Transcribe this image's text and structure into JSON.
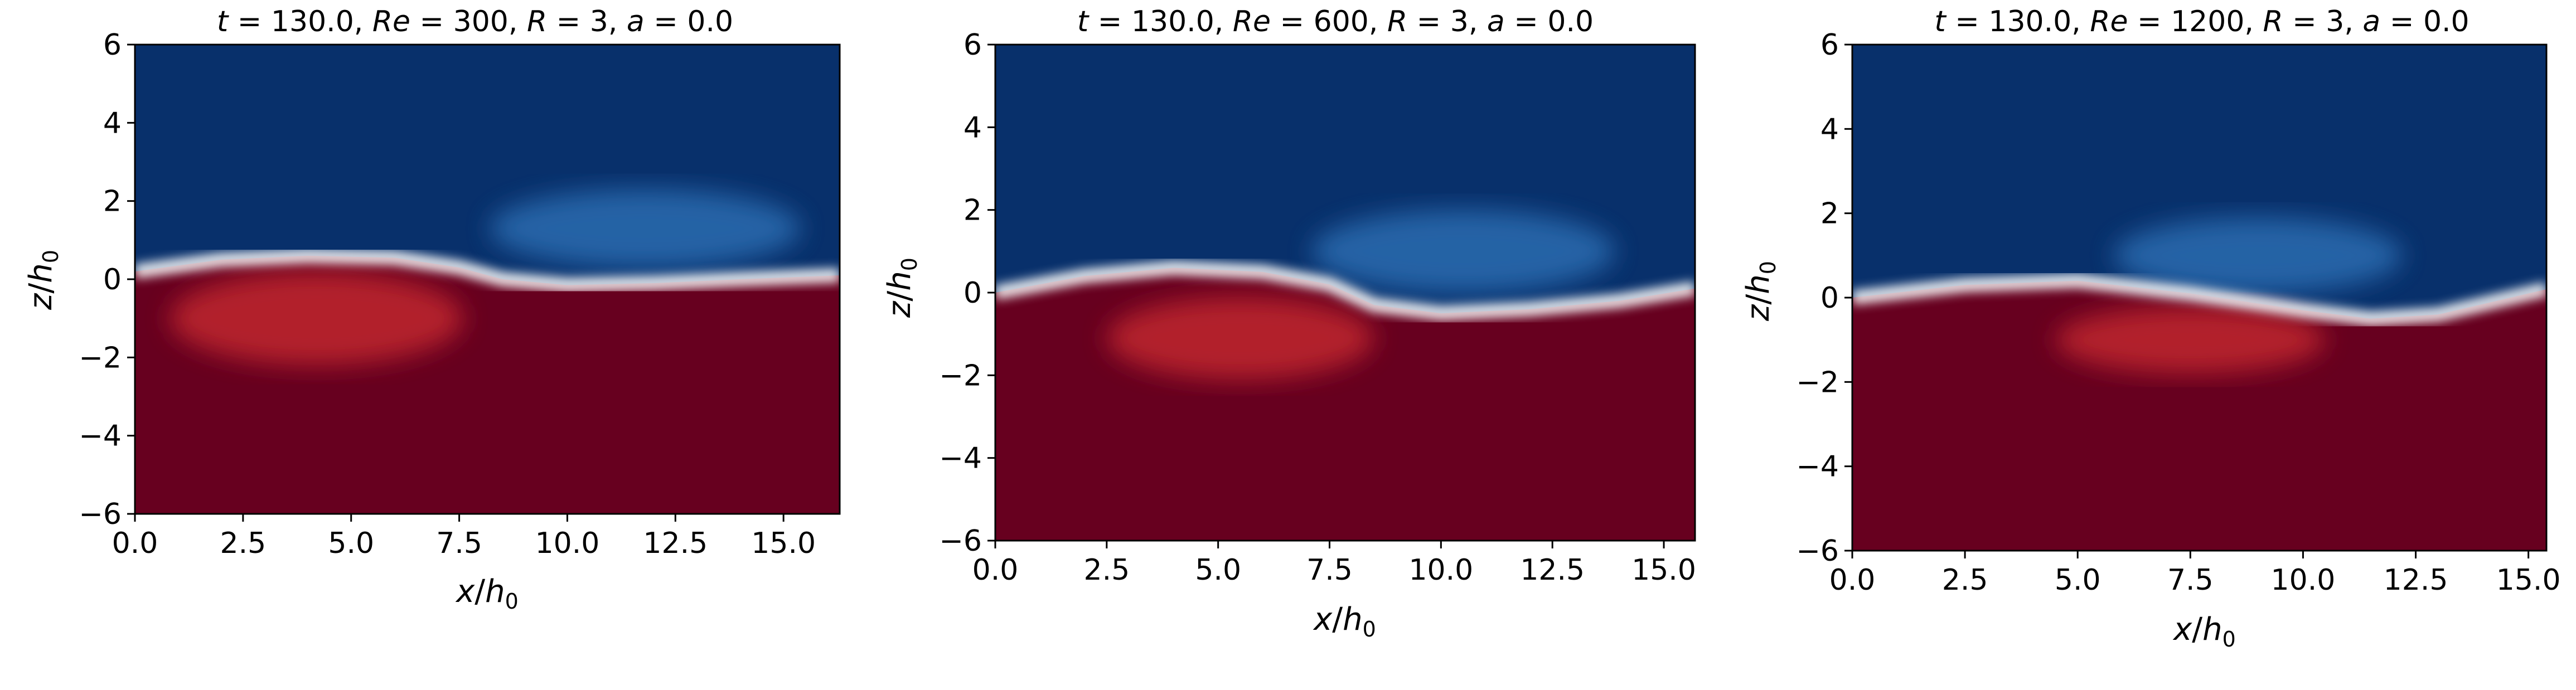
{
  "chart_data": [
    {
      "type": "heatmap",
      "title_parts": {
        "t_sym": "t",
        "t_val": "130.0",
        "Re_sym": "Re",
        "Re_val": "300",
        "R_sym": "R",
        "R_val": "3",
        "a_sym": "a",
        "a_val": "0.0"
      },
      "xlabel": {
        "num": "x",
        "den": "h",
        "sub": "0"
      },
      "ylabel": {
        "num": "z",
        "den": "h",
        "sub": "0"
      },
      "xlim": [
        0,
        16.3
      ],
      "ylim": [
        -6,
        6
      ],
      "xticks": [
        "0.0",
        "2.5",
        "5.0",
        "7.5",
        "10.0",
        "12.5",
        "15.0"
      ],
      "yticks": [
        "−6",
        "−4",
        "−2",
        "0",
        "2",
        "4",
        "6"
      ],
      "colormap": {
        "top": "#08306b",
        "bottom": "#67001f",
        "interface": "#f7f7f7",
        "upper_eddy": "#2b6cb0",
        "lower_eddy": "#c0272d"
      },
      "interface": [
        [
          0,
          0.2
        ],
        [
          2,
          0.5
        ],
        [
          4,
          0.6
        ],
        [
          6,
          0.55
        ],
        [
          7.5,
          0.3
        ],
        [
          8.5,
          0
        ],
        [
          10,
          -0.15
        ],
        [
          12,
          -0.1
        ],
        [
          14,
          0
        ],
        [
          16.3,
          0.1
        ]
      ],
      "upper_eddy": {
        "cx": 11.8,
        "cz": 1.3,
        "rx": 3.6,
        "rz": 1.0
      },
      "lower_eddy": {
        "cx": 4.2,
        "cz": -1.0,
        "rx": 3.4,
        "rz": 1.2
      }
    },
    {
      "type": "heatmap",
      "title_parts": {
        "t_sym": "t",
        "t_val": "130.0",
        "Re_sym": "Re",
        "Re_val": "600",
        "R_sym": "R",
        "R_val": "3",
        "a_sym": "a",
        "a_val": "0.0"
      },
      "xlabel": {
        "num": "x",
        "den": "h",
        "sub": "0"
      },
      "ylabel": {
        "num": "z",
        "den": "h",
        "sub": "0"
      },
      "xlim": [
        0,
        15.7
      ],
      "ylim": [
        -6,
        6
      ],
      "xticks": [
        "0.0",
        "2.5",
        "5.0",
        "7.5",
        "10.0",
        "12.5",
        "15.0"
      ],
      "yticks": [
        "−6",
        "−4",
        "−2",
        "0",
        "2",
        "4",
        "6"
      ],
      "colormap": {
        "top": "#08306b",
        "bottom": "#67001f",
        "interface": "#f7f7f7",
        "upper_eddy": "#2b6cb0",
        "lower_eddy": "#c0272d"
      },
      "interface": [
        [
          0,
          0
        ],
        [
          2,
          0.4
        ],
        [
          4,
          0.6
        ],
        [
          6,
          0.5
        ],
        [
          7.5,
          0.2
        ],
        [
          8.5,
          -0.3
        ],
        [
          10,
          -0.5
        ],
        [
          12,
          -0.4
        ],
        [
          14,
          -0.2
        ],
        [
          15.7,
          0.1
        ]
      ],
      "upper_eddy": {
        "cx": 10.5,
        "cz": 1.0,
        "rx": 3.4,
        "rz": 1.0
      },
      "lower_eddy": {
        "cx": 5.5,
        "cz": -1.1,
        "rx": 3.0,
        "rz": 1.0
      }
    },
    {
      "type": "heatmap",
      "title_parts": {
        "t_sym": "t",
        "t_val": "130.0",
        "Re_sym": "Re",
        "Re_val": "1200",
        "R_sym": "R",
        "R_val": "3",
        "a_sym": "a",
        "a_val": "0.0"
      },
      "xlabel": {
        "num": "x",
        "den": "h",
        "sub": "0"
      },
      "ylabel": {
        "num": "z",
        "den": "h",
        "sub": "0"
      },
      "xlim": [
        0,
        15.4
      ],
      "ylim": [
        -6,
        6
      ],
      "xticks": [
        "0.0",
        "2.5",
        "5.0",
        "7.5",
        "10.0",
        "12.5",
        "15.0"
      ],
      "yticks": [
        "−6",
        "−4",
        "−2",
        "0",
        "2",
        "4",
        "6"
      ],
      "colormap": {
        "top": "#08306b",
        "bottom": "#67001f",
        "interface": "#f7f7f7",
        "upper_eddy": "#2b6cb0",
        "lower_eddy": "#c0272d"
      },
      "interface": [
        [
          0,
          0
        ],
        [
          2.5,
          0.3
        ],
        [
          5,
          0.4
        ],
        [
          7.5,
          0.1
        ],
        [
          10,
          -0.3
        ],
        [
          11.5,
          -0.5
        ],
        [
          13,
          -0.4
        ],
        [
          15.4,
          0.2
        ]
      ],
      "upper_eddy": {
        "cx": 9.0,
        "cz": 1.0,
        "rx": 3.2,
        "rz": 0.9
      },
      "lower_eddy": {
        "cx": 7.5,
        "cz": -1.0,
        "rx": 3.0,
        "rz": 0.8
      }
    }
  ]
}
